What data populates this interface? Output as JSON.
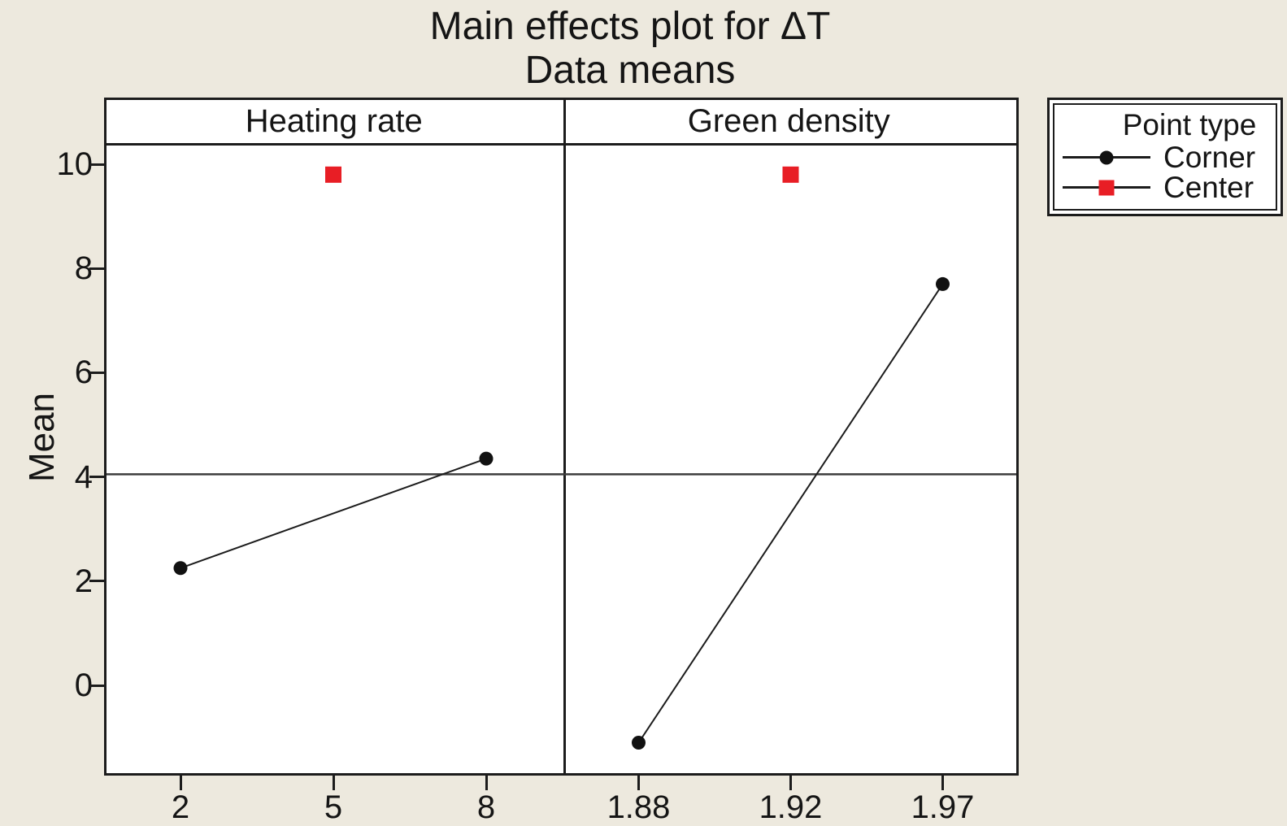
{
  "colors": {
    "background": "#EDE9DE",
    "panel_background": "#FFFFFF",
    "border": "#1c1c1c",
    "corner_marker": "#111111",
    "center_marker": "#E81E25",
    "reference_line": "#3c3c3c"
  },
  "legend": {
    "title": "Point type",
    "items": [
      {
        "label": "Corner",
        "marker": "circle",
        "color": "#111111"
      },
      {
        "label": "Center",
        "marker": "square",
        "color": "#E81E25"
      }
    ]
  },
  "chart_data": {
    "type": "line",
    "title": "Main effects plot for ΔT",
    "subtitle": "Data means",
    "ylabel": "Mean",
    "ylim": [
      -1.7,
      10.4
    ],
    "yticks": [
      0,
      2,
      4,
      6,
      8,
      10
    ],
    "reference_line": 4.05,
    "grid": false,
    "legend_position": "top-right",
    "panels": [
      {
        "header": "Heating rate",
        "categories": [
          "2",
          "5",
          "8"
        ],
        "series": [
          {
            "name": "Corner",
            "marker": "circle",
            "color": "#111111",
            "connected": true,
            "points": [
              {
                "cat": 0,
                "y": 2.25
              },
              {
                "cat": 2,
                "y": 4.35
              }
            ]
          },
          {
            "name": "Center",
            "marker": "square",
            "color": "#E81E25",
            "connected": false,
            "points": [
              {
                "cat": 1,
                "y": 9.8
              }
            ]
          }
        ]
      },
      {
        "header": "Green density",
        "categories": [
          "1.88",
          "1.92",
          "1.97"
        ],
        "series": [
          {
            "name": "Corner",
            "marker": "circle",
            "color": "#111111",
            "connected": true,
            "points": [
              {
                "cat": 0,
                "y": -1.1
              },
              {
                "cat": 2,
                "y": 7.7
              }
            ]
          },
          {
            "name": "Center",
            "marker": "square",
            "color": "#E81E25",
            "connected": false,
            "points": [
              {
                "cat": 1,
                "y": 9.8
              }
            ]
          }
        ]
      }
    ]
  }
}
